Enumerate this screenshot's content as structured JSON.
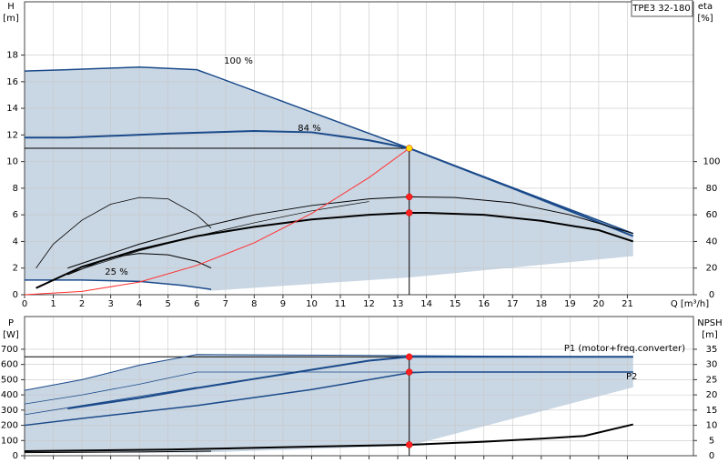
{
  "chart_data": [
    {
      "type": "line",
      "title": "TPE3 32-180",
      "ylabel": "H",
      "yunit": "[m]",
      "y2label": "eta",
      "y2unit": "[%]",
      "xlabel": "Q [m³/h]",
      "xlim": [
        0,
        23.3
      ],
      "xticks": [
        0,
        1,
        2,
        3,
        4,
        5,
        6,
        7,
        8,
        9,
        10,
        11,
        12,
        13,
        14,
        15,
        16,
        17,
        18,
        19,
        20,
        21
      ],
      "ylim": [
        0,
        22
      ],
      "yticks": [
        0,
        2,
        4,
        6,
        8,
        10,
        12,
        14,
        16,
        18
      ],
      "y2lim": [
        0,
        220
      ],
      "y2ticks": [
        0,
        20,
        40,
        60,
        80,
        100
      ],
      "grid": true,
      "area": {
        "color": "#c9d6e3",
        "x": [
          0,
          1.5,
          4,
          6,
          6.5,
          13.4,
          21.2
        ],
        "upper": [
          16.8,
          16.9,
          17.1,
          16.9,
          16.4,
          11.0,
          4.6
        ],
        "lower": [
          1.1,
          1.1,
          1.0,
          0.6,
          0.3,
          1.3,
          2.9
        ]
      },
      "series": [
        {
          "name": "100 %",
          "color": "#1a4a8a",
          "width": 1.5,
          "x": [
            0,
            1.5,
            4,
            6,
            13.4,
            21.2
          ],
          "values": [
            16.8,
            16.9,
            17.1,
            16.9,
            11.0,
            4.6
          ]
        },
        {
          "name": "84 %",
          "color": "#1a4a8a",
          "width": 2,
          "x": [
            0,
            1.5,
            5,
            8,
            10,
            12,
            13.4,
            17,
            21.2
          ],
          "values": [
            11.8,
            11.8,
            12.1,
            12.3,
            12.2,
            11.6,
            11.0,
            8.0,
            4.4
          ]
        },
        {
          "name": "25 %",
          "color": "#1a4a8a",
          "width": 1.5,
          "x": [
            0,
            2,
            4,
            5.5,
            6.5
          ],
          "values": [
            1.1,
            1.1,
            1.0,
            0.7,
            0.4
          ]
        },
        {
          "color": "#000000",
          "width": 2,
          "x": [
            0.4,
            2,
            4,
            6,
            8,
            10,
            12,
            13.4,
            14,
            16,
            18,
            20,
            21.2
          ],
          "values": [
            0.5,
            2.1,
            3.4,
            4.4,
            5.1,
            5.65,
            6.0,
            6.15,
            6.15,
            6.0,
            5.55,
            4.85,
            4.0
          ]
        },
        {
          "color": "#000000",
          "width": 1,
          "axis": "y2",
          "x": [
            1.5,
            4,
            6,
            8,
            10,
            12,
            13.4,
            15,
            17,
            19,
            21.2
          ],
          "values": [
            20,
            38,
            50,
            60,
            67,
            72,
            73.5,
            73,
            69,
            60,
            46
          ]
        },
        {
          "color": "#000000",
          "width": 0.7,
          "axis": "y2",
          "x": [
            1.5,
            4,
            6,
            8,
            10,
            12
          ],
          "values": [
            16,
            33,
            44,
            54,
            63,
            70
          ]
        },
        {
          "color": "#000000",
          "width": 0.8,
          "x": [
            0.4,
            1,
            2,
            3,
            4,
            5,
            6,
            6.5
          ],
          "values": [
            2.0,
            3.8,
            5.6,
            6.8,
            7.3,
            7.2,
            6.0,
            5.0
          ]
        },
        {
          "color": "#000000",
          "width": 1,
          "x": [
            1.5,
            3,
            4,
            5,
            6,
            6.5
          ],
          "values": [
            1.5,
            2.8,
            3.1,
            3.0,
            2.5,
            2.0
          ]
        },
        {
          "color": "#ff3030",
          "width": 1,
          "x": [
            0,
            2,
            4,
            6,
            8,
            10,
            12,
            13.4
          ],
          "values": [
            0,
            0.25,
            0.95,
            2.2,
            3.9,
            6.1,
            8.8,
            11.0
          ]
        }
      ],
      "points": [
        {
          "x": 13.4,
          "y": 11.0,
          "color": "#ffe000"
        },
        {
          "x": 13.4,
          "y": 73.5,
          "axis": "y2",
          "color": "#ff2020"
        },
        {
          "x": 13.4,
          "y": 6.15,
          "color": "#ff2020"
        }
      ]
    },
    {
      "type": "line",
      "ylabel": "P",
      "yunit": "[W]",
      "y2label": "NPSH",
      "y2unit": "[m]",
      "xlim": [
        0,
        23.3
      ],
      "xticks": [
        0,
        1,
        2,
        3,
        4,
        5,
        6,
        7,
        8,
        9,
        10,
        11,
        12,
        13,
        14,
        15,
        16,
        17,
        18,
        19,
        20,
        21
      ],
      "ylim": [
        0,
        915
      ],
      "yticks": [
        0,
        100,
        200,
        300,
        400,
        500,
        600,
        700
      ],
      "y2lim": [
        0,
        45.75
      ],
      "y2ticks": [
        0,
        5,
        10,
        15,
        20,
        25,
        30,
        35
      ],
      "grid": true,
      "area": {
        "color": "#c9d6e3",
        "x": [
          0,
          2,
          4,
          6,
          13.4,
          21.2
        ],
        "upper": [
          430,
          500,
          600,
          665,
          650,
          650
        ],
        "lower": [
          20,
          20,
          20,
          20,
          66,
          450
        ]
      },
      "series": [
        {
          "name": "P1 (motor+freq.converter)",
          "color": "#1a4a8a",
          "width": 2,
          "x": [
            1.5,
            4,
            6,
            8,
            10,
            12,
            13.4,
            21.2
          ],
          "values": [
            310,
            380,
            445,
            505,
            565,
            625,
            650,
            650
          ]
        },
        {
          "name": "P2",
          "color": "#1a4a8a",
          "width": 1.5,
          "x": [
            0,
            2,
            6,
            10,
            13.4,
            14,
            21.2
          ],
          "values": [
            200,
            245,
            330,
            435,
            545,
            550,
            550
          ]
        },
        {
          "color": "#1a4a8a",
          "width": 1,
          "x": [
            0,
            2,
            4,
            6,
            21.2
          ],
          "values": [
            430,
            500,
            595,
            665,
            650
          ]
        },
        {
          "color": "#1a4a8a",
          "width": 0.8,
          "x": [
            0,
            2,
            4,
            6,
            21.2
          ],
          "values": [
            340,
            400,
            470,
            550,
            550
          ]
        },
        {
          "color": "#1a4a8a",
          "width": 0.8,
          "x": [
            0,
            2,
            4,
            6
          ],
          "values": [
            270,
            330,
            390,
            450
          ]
        },
        {
          "color": "#000000",
          "width": 2,
          "axis": "y2",
          "x": [
            0,
            5,
            10,
            13.4,
            16,
            18,
            19.5,
            21.2
          ],
          "values": [
            1.5,
            2.0,
            3.0,
            3.6,
            4.6,
            5.6,
            6.5,
            10.3
          ]
        },
        {
          "color": "#000000",
          "width": 1,
          "x": [
            0,
            4,
            6.5
          ],
          "values": [
            20,
            25,
            30
          ]
        }
      ],
      "points": [
        {
          "x": 13.4,
          "y": 650,
          "color": "#ff2020"
        },
        {
          "x": 13.4,
          "y": 550,
          "color": "#ff2020"
        },
        {
          "x": 13.4,
          "y": 3.6,
          "axis": "y2",
          "color": "#ff2020"
        }
      ]
    }
  ]
}
